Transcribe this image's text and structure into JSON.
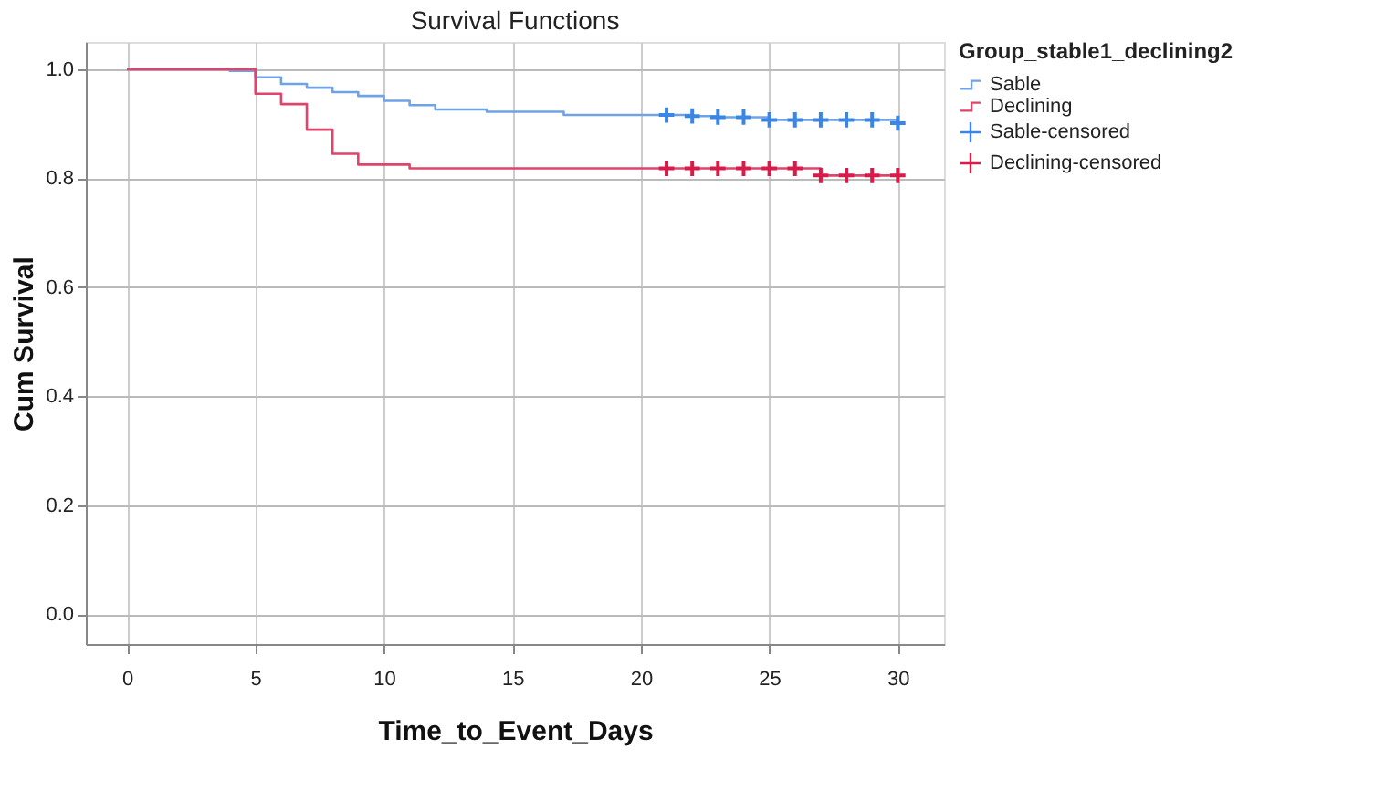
{
  "chart_data": {
    "type": "step",
    "title": "Survival Functions",
    "xlabel": "Time_to_Event_Days",
    "ylabel": "Cum Survival",
    "legend_title": "Group_stable1_declining2",
    "xlim": [
      -1.6,
      31.8
    ],
    "ylim": [
      -0.055,
      1.05
    ],
    "xticks": [
      0,
      5,
      10,
      15,
      20,
      25,
      30
    ],
    "yticks": [
      {
        "value": 0,
        "label": "0.0"
      },
      {
        "value": 0.2,
        "label": "0.2"
      },
      {
        "value": 0.4,
        "label": "0.4"
      },
      {
        "value": 0.6,
        "label": "0.6"
      },
      {
        "value": 0.8,
        "label": "0.8"
      },
      {
        "value": 1,
        "label": "1.0"
      }
    ],
    "grid": true,
    "legend": "top right",
    "series": [
      {
        "name": "Sable",
        "type": "step",
        "marker": "none",
        "color": "#6fa3e6",
        "x": [
          0,
          4,
          5,
          6,
          7,
          8,
          9,
          10,
          11,
          12,
          14,
          17,
          22,
          23,
          25,
          30
        ],
        "values": [
          1,
          0.997,
          0.985,
          0.973,
          0.966,
          0.958,
          0.951,
          0.942,
          0.934,
          0.926,
          0.922,
          0.916,
          0.914,
          0.912,
          0.907,
          0.901
        ]
      },
      {
        "name": "Declining",
        "type": "step",
        "marker": "none",
        "color": "#e0446a",
        "x": [
          0,
          5,
          6,
          7,
          8,
          9,
          11,
          27,
          30
        ],
        "values": [
          1,
          0.955,
          0.936,
          0.889,
          0.845,
          0.825,
          0.818,
          0.805,
          0.805
        ]
      },
      {
        "name": "Sable-censored",
        "type": "scatter",
        "marker": "cross",
        "color": "#3a86e6",
        "x": [
          21,
          22,
          23,
          24,
          25,
          26,
          27,
          28,
          29,
          30
        ],
        "values": [
          0.916,
          0.914,
          0.912,
          0.912,
          0.907,
          0.907,
          0.907,
          0.907,
          0.907,
          0.901
        ]
      },
      {
        "name": "Declining-censored",
        "type": "scatter",
        "marker": "cross",
        "color": "#d81b48",
        "x": [
          21,
          22,
          23,
          24,
          25,
          26,
          27,
          28,
          29,
          30
        ],
        "values": [
          0.818,
          0.818,
          0.818,
          0.818,
          0.818,
          0.818,
          0.805,
          0.805,
          0.805,
          0.805
        ]
      }
    ]
  }
}
